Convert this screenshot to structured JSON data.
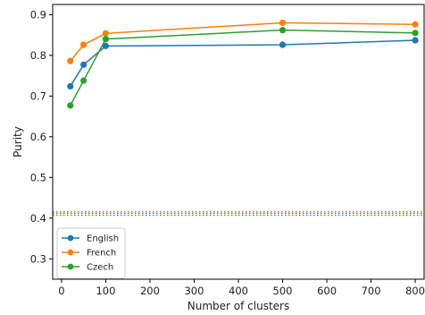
{
  "chart_data": {
    "type": "line",
    "xlabel": "Number of clusters",
    "ylabel": "Purity",
    "xlim": [
      -20,
      820
    ],
    "ylim": [
      0.25,
      0.925
    ],
    "xticks": [
      0,
      100,
      200,
      300,
      400,
      500,
      600,
      700,
      800
    ],
    "yticks": [
      0.3,
      0.4,
      0.5,
      0.6,
      0.7,
      0.8,
      0.9
    ],
    "grid": false,
    "legend_position": "lower-left",
    "series": [
      {
        "name": "English",
        "color": "#1f77b4",
        "x": [
          20,
          50,
          100,
          500,
          800
        ],
        "y": [
          0.724,
          0.777,
          0.823,
          0.826,
          0.837
        ]
      },
      {
        "name": "French",
        "color": "#ff7f0e",
        "x": [
          20,
          50,
          100,
          500,
          800
        ],
        "y": [
          0.786,
          0.826,
          0.854,
          0.88,
          0.876
        ]
      },
      {
        "name": "Czech",
        "color": "#2ca02c",
        "x": [
          20,
          50,
          100,
          500,
          800
        ],
        "y": [
          0.677,
          0.738,
          0.84,
          0.862,
          0.855
        ]
      }
    ],
    "baselines": [
      {
        "name": "English",
        "color": "#1f77b4",
        "y": 0.412
      },
      {
        "name": "French",
        "color": "#ff7f0e",
        "y": 0.416
      },
      {
        "name": "Czech",
        "color": "#2ca02c",
        "y": 0.407
      }
    ]
  }
}
